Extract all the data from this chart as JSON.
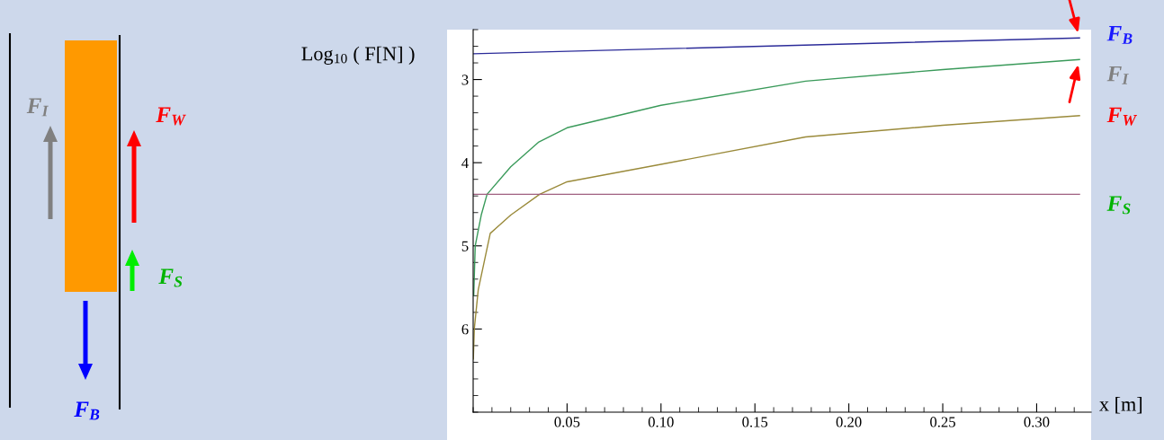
{
  "chart_data": {
    "type": "line",
    "ylabel": "Log$_{10}$ ( F[N] )",
    "xlabel": "x [m]",
    "xlim": [
      0,
      0.329
    ],
    "ylim": [
      7.0,
      2.4
    ],
    "xticks": [
      0.05,
      {
        "value": 0.1,
        "label": "0.10"
      },
      0.15,
      {
        "value": 0.2,
        "label": "0.20"
      },
      0.25,
      {
        "value": 0.3,
        "label": "0.30"
      }
    ],
    "yticks": [
      3,
      4,
      5,
      6
    ],
    "grid": false,
    "legend": false,
    "marker": "none",
    "line_style": "solid",
    "series": [
      {
        "name": "F$_{B}$",
        "color": "#2b2b99",
        "x": [
          0,
          0.3228
        ],
        "values": [
          2.69,
          2.5
        ]
      },
      {
        "name": "F$_{I}$",
        "color": "#3a9a5a",
        "x": [
          0.0003,
          0.0011,
          0.0043,
          0.0074,
          0.02,
          0.035,
          0.05,
          0.1,
          0.177,
          0.25,
          0.3228
        ],
        "values": [
          5.6,
          5.0,
          4.63,
          4.38,
          4.05,
          3.75,
          3.58,
          3.31,
          3.02,
          2.88,
          2.76
        ]
      },
      {
        "name": "F$_{W}$",
        "color": "#9a8a3a",
        "x": [
          0.0001,
          0.0006,
          0.0027,
          0.0091,
          0.02,
          0.0354,
          0.05,
          0.1,
          0.177,
          0.25,
          0.3228
        ],
        "values": [
          6.36,
          6.0,
          5.53,
          4.85,
          4.63,
          4.38,
          4.23,
          4.02,
          3.69,
          3.55,
          3.435
        ]
      },
      {
        "name": "F$_{S}$",
        "color": "#a06080",
        "x": [
          0,
          0.3228
        ],
        "values": [
          4.38,
          4.38
        ]
      }
    ],
    "annotations": [
      "F$_{I}$",
      "F$_{W}$",
      "F$_{S}$",
      "F$_{B}$"
    ]
  }
}
